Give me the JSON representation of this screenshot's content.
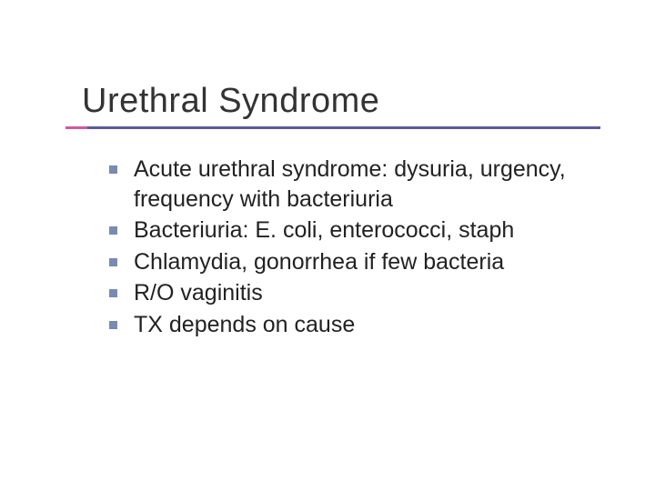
{
  "colors": {
    "rule_accent": "#d15a9c",
    "rule_line": "#5a5a9c",
    "bullet": "#7a8ab0",
    "title": "#333333",
    "body_text": "#222222",
    "background": "#ffffff"
  },
  "typography": {
    "title_fontsize": 38,
    "body_fontsize": 25,
    "font_family": "Verdana"
  },
  "title": "Urethral Syndrome",
  "bullets": [
    "Acute urethral syndrome: dysuria, urgency, frequency with bacteriuria",
    "Bacteriuria: E. coli, enterococci, staph",
    "Chlamydia, gonorrhea if few bacteria",
    "R/O vaginitis",
    "TX depends on cause"
  ]
}
